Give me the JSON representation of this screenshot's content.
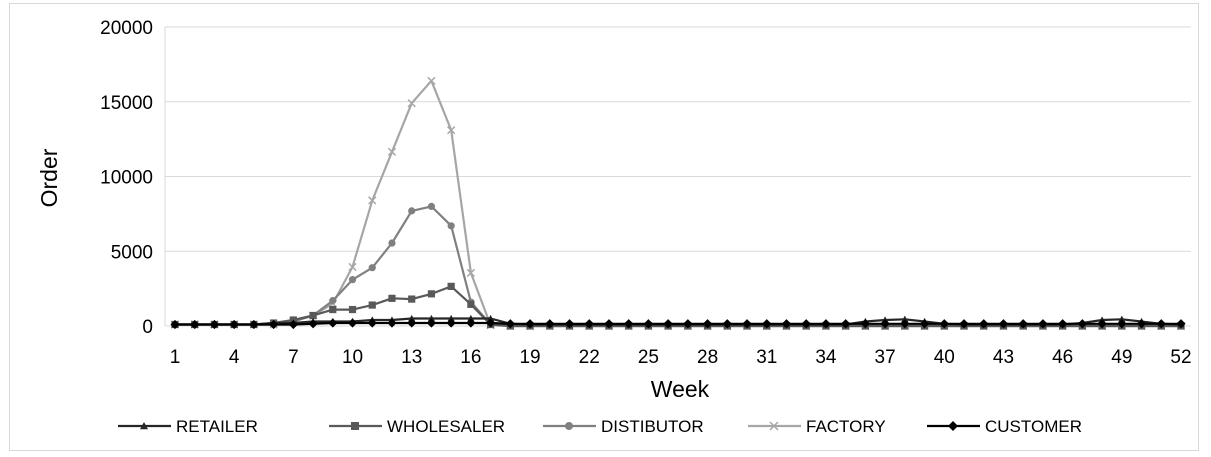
{
  "chart_data": {
    "type": "line",
    "xlabel": "Week",
    "ylabel": "Order",
    "ylim": [
      0,
      20000
    ],
    "yticks": [
      "0",
      "5000",
      "10000",
      "15000",
      "20000"
    ],
    "xticks": [
      "1",
      "4",
      "7",
      "10",
      "13",
      "16",
      "19",
      "22",
      "25",
      "28",
      "31",
      "34",
      "37",
      "40",
      "43",
      "46",
      "49",
      "52"
    ],
    "x": [
      1,
      2,
      3,
      4,
      5,
      6,
      7,
      8,
      9,
      10,
      11,
      12,
      13,
      14,
      15,
      16,
      17,
      18,
      19,
      20,
      21,
      22,
      23,
      24,
      25,
      26,
      27,
      28,
      29,
      30,
      31,
      32,
      33,
      34,
      35,
      36,
      37,
      38,
      39,
      40,
      41,
      42,
      43,
      44,
      45,
      46,
      47,
      48,
      49,
      50,
      51,
      52
    ],
    "grid": "horizontal",
    "legend": "bottom",
    "series": [
      {
        "name": "RETAILER",
        "color": "#262626",
        "marker": "triangle",
        "values": [
          100,
          100,
          100,
          100,
          100,
          200,
          200,
          300,
          300,
          300,
          400,
          400,
          500,
          500,
          500,
          500,
          500,
          150,
          100,
          100,
          100,
          100,
          100,
          100,
          100,
          100,
          100,
          100,
          100,
          100,
          100,
          100,
          100,
          100,
          100,
          300,
          400,
          450,
          300,
          150,
          100,
          100,
          100,
          100,
          100,
          100,
          200,
          400,
          450,
          300,
          150,
          100
        ]
      },
      {
        "name": "WHOLESALER",
        "color": "#595959",
        "marker": "square",
        "values": [
          100,
          100,
          100,
          100,
          100,
          200,
          400,
          700,
          1100,
          1100,
          1400,
          1850,
          1800,
          2150,
          2650,
          1450,
          100,
          0,
          0,
          0,
          0,
          0,
          0,
          0,
          0,
          0,
          0,
          0,
          0,
          0,
          0,
          0,
          0,
          0,
          0,
          0,
          0,
          0,
          0,
          0,
          0,
          0,
          0,
          0,
          0,
          0,
          0,
          0,
          0,
          0,
          0,
          0
        ]
      },
      {
        "name": "DISTIBUTOR",
        "color": "#808080",
        "marker": "circle",
        "values": [
          100,
          100,
          100,
          100,
          100,
          100,
          300,
          700,
          1700,
          3100,
          3900,
          5550,
          7700,
          8000,
          6700,
          1600,
          100,
          0,
          0,
          0,
          0,
          0,
          0,
          0,
          0,
          0,
          0,
          0,
          0,
          0,
          0,
          0,
          0,
          0,
          0,
          0,
          0,
          0,
          0,
          0,
          0,
          0,
          0,
          0,
          0,
          0,
          0,
          0,
          0,
          0,
          0,
          0
        ]
      },
      {
        "name": "FACTORY",
        "color": "#a6a6a6",
        "marker": "x",
        "values": [
          100,
          100,
          100,
          100,
          100,
          100,
          300,
          700,
          1500,
          3950,
          8400,
          11650,
          14900,
          16400,
          13100,
          3550,
          50,
          0,
          0,
          0,
          0,
          0,
          0,
          0,
          0,
          0,
          0,
          0,
          0,
          0,
          0,
          0,
          0,
          0,
          0,
          0,
          0,
          0,
          0,
          0,
          0,
          0,
          0,
          0,
          0,
          0,
          0,
          0,
          0,
          0,
          0,
          0
        ]
      },
      {
        "name": "CUSTOMER",
        "color": "#000000",
        "marker": "diamond",
        "values": [
          100,
          100,
          100,
          100,
          100,
          100,
          100,
          150,
          200,
          200,
          200,
          200,
          200,
          200,
          200,
          200,
          200,
          150,
          150,
          150,
          150,
          150,
          150,
          150,
          150,
          150,
          150,
          150,
          150,
          150,
          150,
          150,
          150,
          150,
          150,
          150,
          150,
          150,
          150,
          150,
          150,
          150,
          150,
          150,
          150,
          150,
          150,
          150,
          150,
          150,
          150,
          150
        ]
      }
    ]
  }
}
